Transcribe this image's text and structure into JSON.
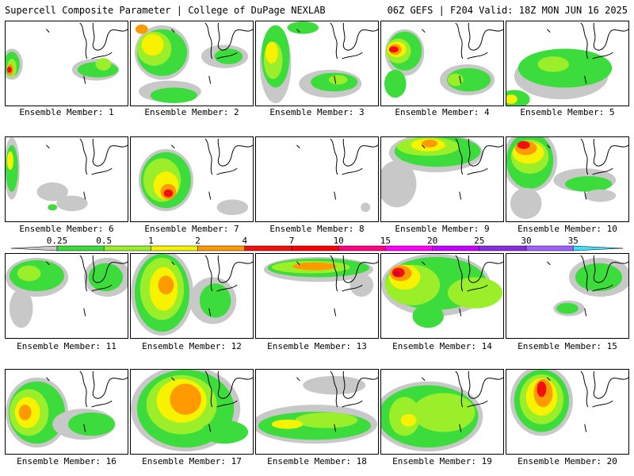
{
  "header": {
    "left": "Supercell Composite Parameter | College of DuPage NEXLAB",
    "right": "06Z GEFS | F204 Valid: 18Z MON JUN 16 2025"
  },
  "legend": {
    "ticks": [
      "0.25",
      "0.5",
      "1",
      "2",
      "4",
      "7",
      "10",
      "15",
      "20",
      "25",
      "30",
      "35"
    ],
    "colors": [
      "#c8c8c8",
      "#3cdc3c",
      "#9bef2a",
      "#f7f200",
      "#ff9a00",
      "#f20f0f",
      "#ff0000",
      "#ff0080",
      "#ff00ff",
      "#c800ff",
      "#8a2be2",
      "#a060ff",
      "#3ce1ff"
    ]
  },
  "members": [
    {
      "label": "Ensemble Member: 1"
    },
    {
      "label": "Ensemble Member: 2"
    },
    {
      "label": "Ensemble Member: 3"
    },
    {
      "label": "Ensemble Member: 4"
    },
    {
      "label": "Ensemble Member: 5"
    },
    {
      "label": "Ensemble Member: 6"
    },
    {
      "label": "Ensemble Member: 7"
    },
    {
      "label": "Ensemble Member: 8"
    },
    {
      "label": "Ensemble Member: 9"
    },
    {
      "label": "Ensemble Member: 10"
    },
    {
      "label": "Ensemble Member: 11"
    },
    {
      "label": "Ensemble Member: 12"
    },
    {
      "label": "Ensemble Member: 13"
    },
    {
      "label": "Ensemble Member: 14"
    },
    {
      "label": "Ensemble Member: 15"
    },
    {
      "label": "Ensemble Member: 16"
    },
    {
      "label": "Ensemble Member: 17"
    },
    {
      "label": "Ensemble Member: 18"
    },
    {
      "label": "Ensemble Member: 19"
    },
    {
      "label": "Ensemble Member: 20"
    }
  ]
}
